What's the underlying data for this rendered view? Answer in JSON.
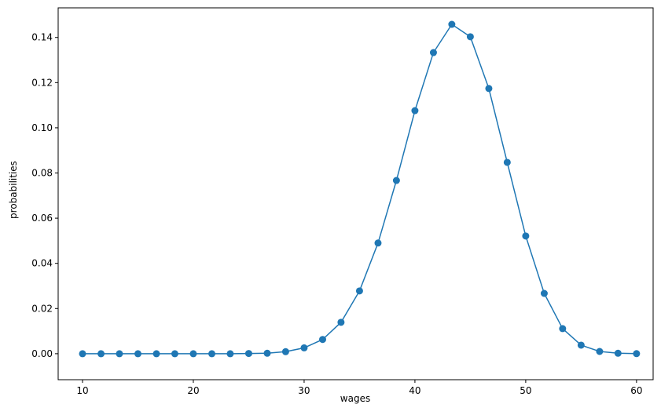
{
  "chart_data": {
    "type": "line",
    "title": "",
    "xlabel": "wages",
    "ylabel": "probabilities",
    "xlim": [
      7.8,
      61.5
    ],
    "ylim": [
      -0.0115,
      0.1531
    ],
    "xticks": [
      10,
      20,
      30,
      40,
      50,
      60
    ],
    "xtick_labels": [
      "10",
      "20",
      "30",
      "40",
      "50",
      "60"
    ],
    "yticks": [
      0,
      0.02,
      0.04,
      0.06,
      0.08,
      0.1,
      0.12,
      0.14
    ],
    "ytick_labels": [
      "0.00",
      "0.02",
      "0.04",
      "0.06",
      "0.08",
      "0.10",
      "0.12",
      "0.14"
    ],
    "grid": false,
    "marker": "circle",
    "color": "#1f77b4",
    "x": [
      10,
      11.67,
      13.33,
      15,
      16.67,
      18.33,
      20,
      21.67,
      23.33,
      25,
      26.67,
      28.33,
      30,
      31.67,
      33.33,
      35,
      36.67,
      38.33,
      40,
      41.67,
      43.33,
      45,
      46.67,
      48.33,
      50,
      51.67,
      53.33,
      55,
      56.67,
      58.33,
      60
    ],
    "y": [
      0,
      0,
      0,
      0,
      0,
      0,
      0,
      0,
      0,
      0.0001,
      0.0002,
      0.0009,
      0.0026,
      0.0063,
      0.0139,
      0.0278,
      0.049,
      0.0767,
      0.1076,
      0.1333,
      0.1458,
      0.1403,
      0.1174,
      0.0847,
      0.0521,
      0.0267,
      0.0111,
      0.0038,
      0.001,
      0.0002,
      3e-05
    ]
  }
}
